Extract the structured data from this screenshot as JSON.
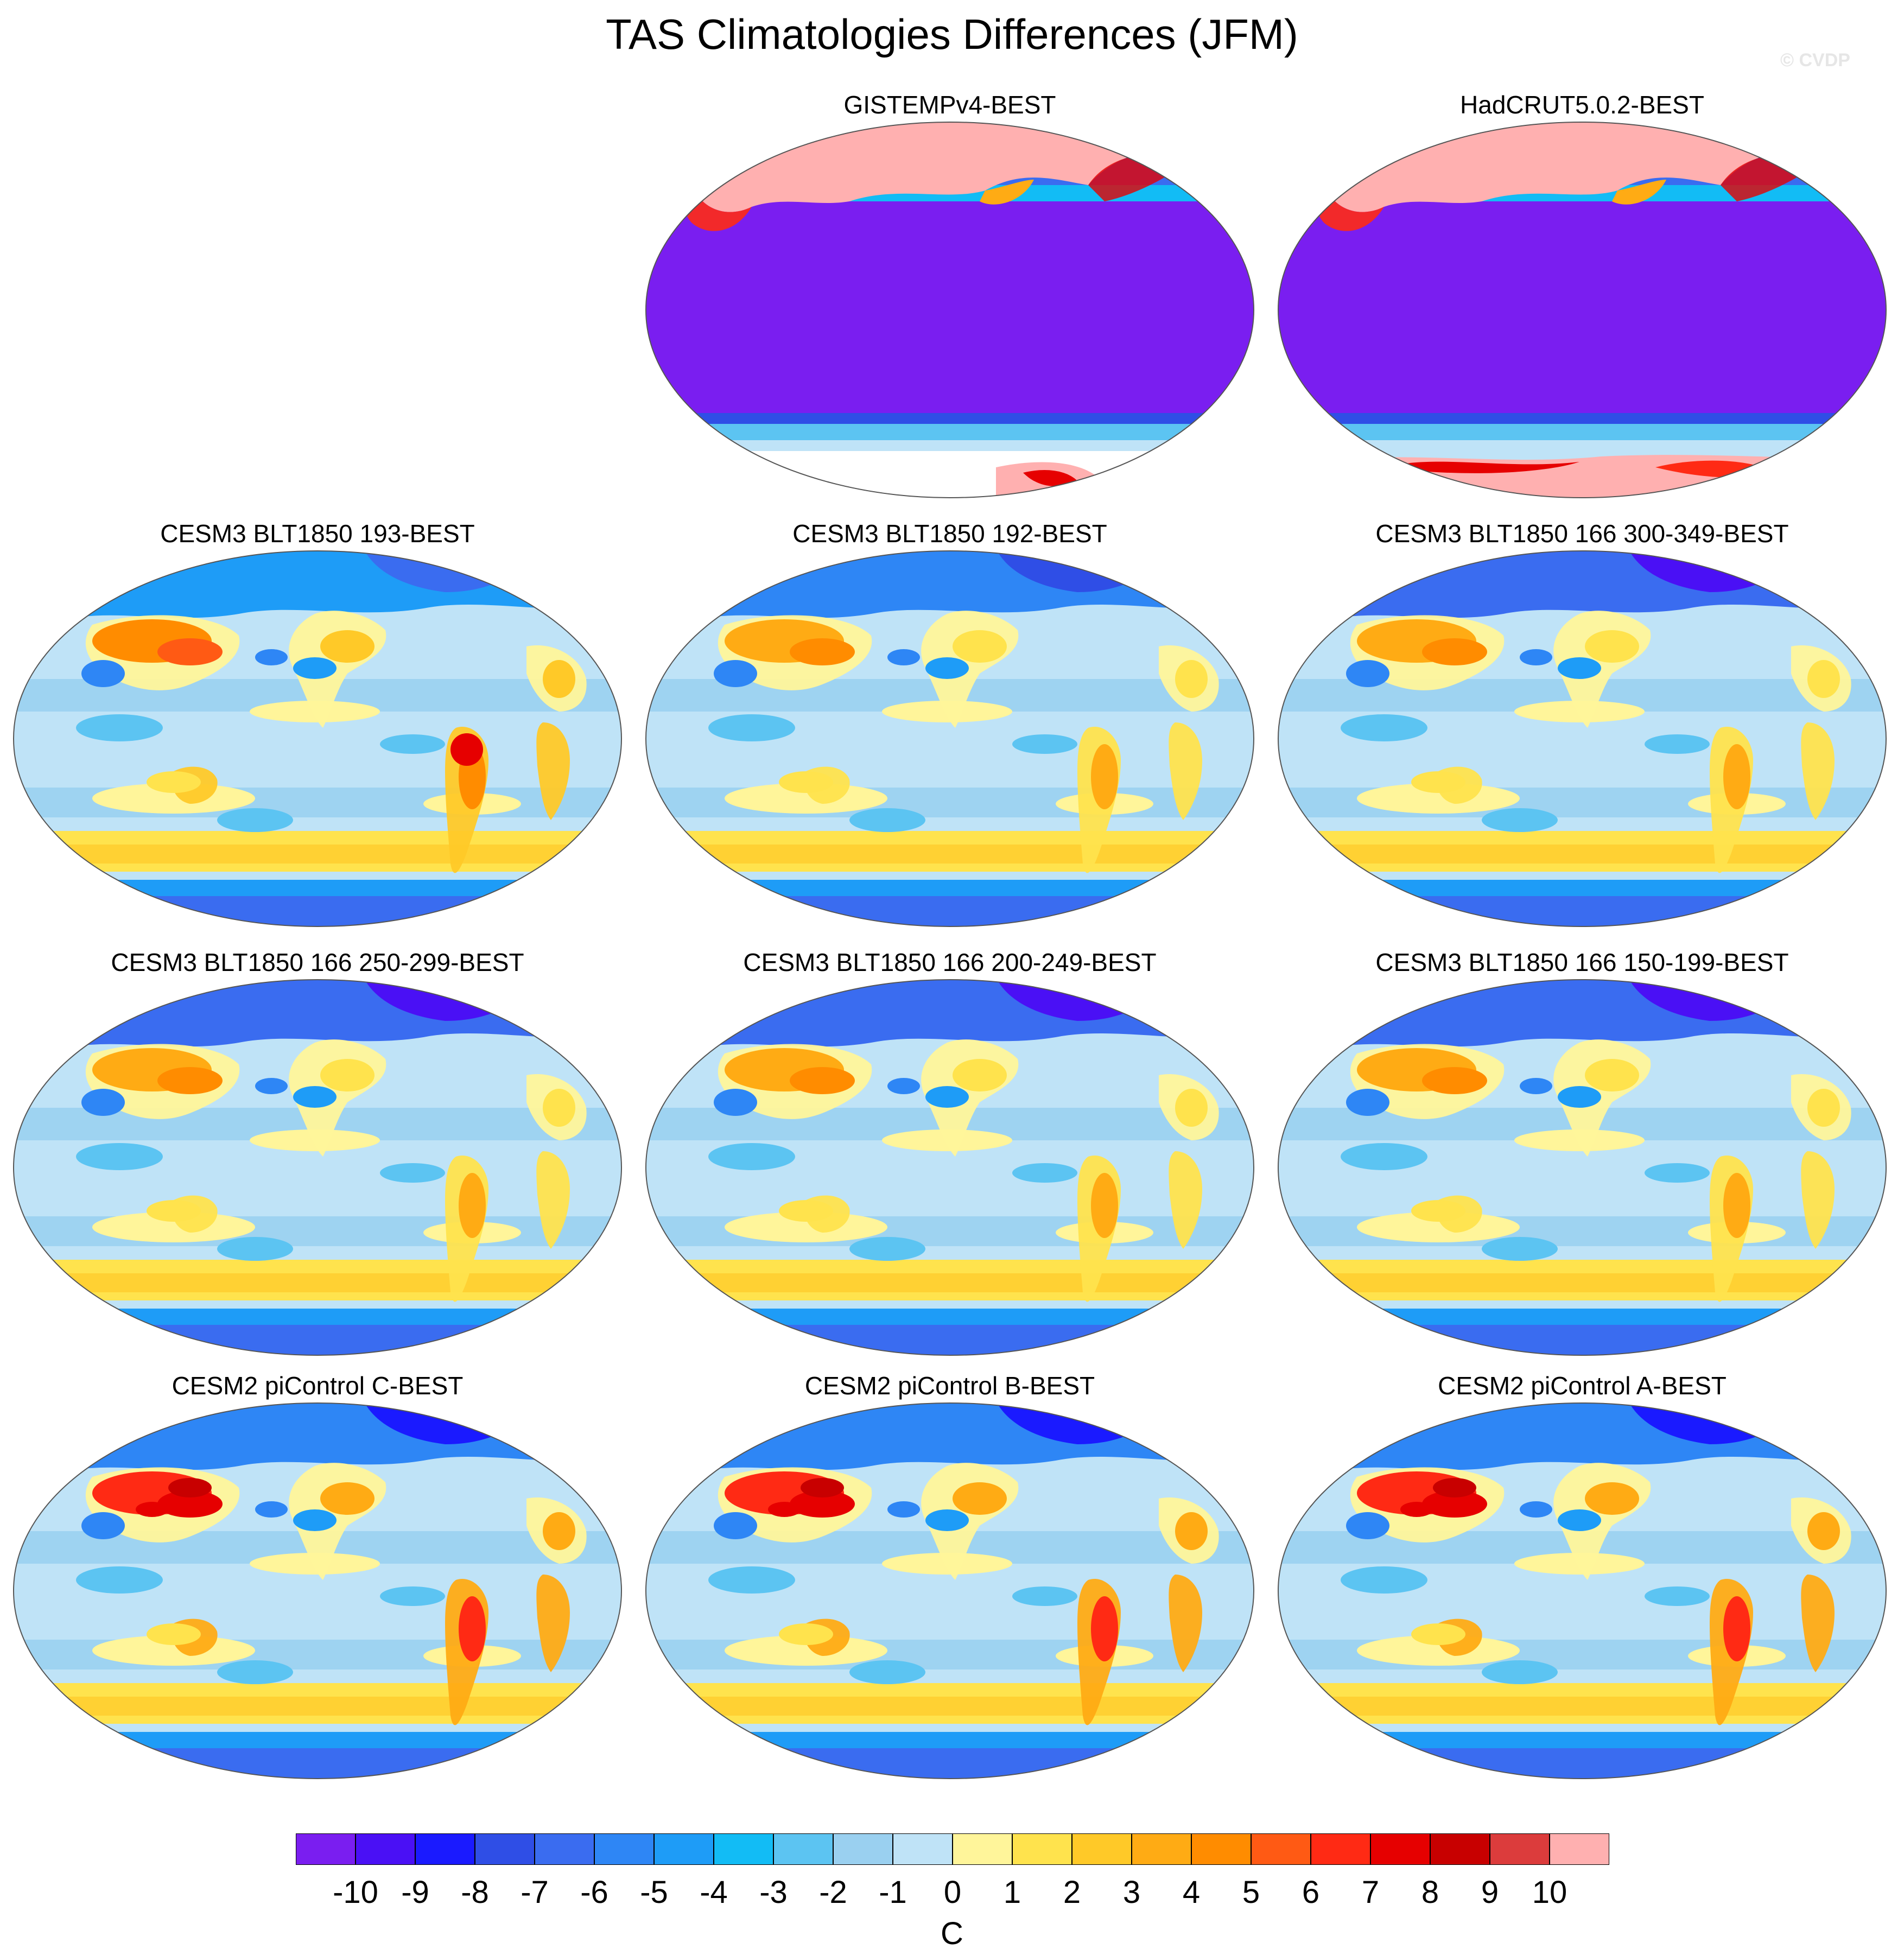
{
  "title": "TAS Climatologies Differences (JFM)",
  "credit": "© CVDP",
  "panels": [
    {
      "label": "GISTEMPv4-BEST",
      "style": "obs-gistemp"
    },
    {
      "label": "HadCRUT5.0.2-BEST",
      "style": "obs-hadcrut"
    },
    {
      "label": "CESM3 BLT1850 193-BEST",
      "style": "model-warm"
    },
    {
      "label": "CESM3 BLT1850 192-BEST",
      "style": "model"
    },
    {
      "label": "CESM3 BLT1850 166 300-349-BEST",
      "style": "model-cold"
    },
    {
      "label": "CESM3 BLT1850 166 250-299-BEST",
      "style": "model-cold"
    },
    {
      "label": "CESM3 BLT1850 166 200-249-BEST",
      "style": "model-cold"
    },
    {
      "label": "CESM3 BLT1850 166 150-199-BEST",
      "style": "model-cold"
    },
    {
      "label": "CESM2 piControl C-BEST",
      "style": "model-hot"
    },
    {
      "label": "CESM2 piControl B-BEST",
      "style": "model-hot"
    },
    {
      "label": "CESM2 piControl A-BEST",
      "style": "model-hot"
    }
  ],
  "colorbar": {
    "colors": [
      "#7a1ef0",
      "#4a10f5",
      "#1a1aff",
      "#2f4ee6",
      "#3a6cf0",
      "#2e86f5",
      "#1e9cf7",
      "#12bcf5",
      "#5cc4f2",
      "#9ad0f0",
      "#bfe3f7",
      "#fff59a",
      "#ffe34d",
      "#ffc928",
      "#ffab14",
      "#ff8c00",
      "#ff5a14",
      "#ff2a14",
      "#e60000",
      "#c80000",
      "#dc3c3c",
      "#ffb0b0"
    ],
    "labels": [
      "-10",
      "-9",
      "-8",
      "-7",
      "-6",
      "-5",
      "-4",
      "-3",
      "-2",
      "-1",
      "0",
      "1",
      "2",
      "3",
      "4",
      "5",
      "6",
      "7",
      "8",
      "9",
      "10"
    ],
    "unit": "C"
  }
}
